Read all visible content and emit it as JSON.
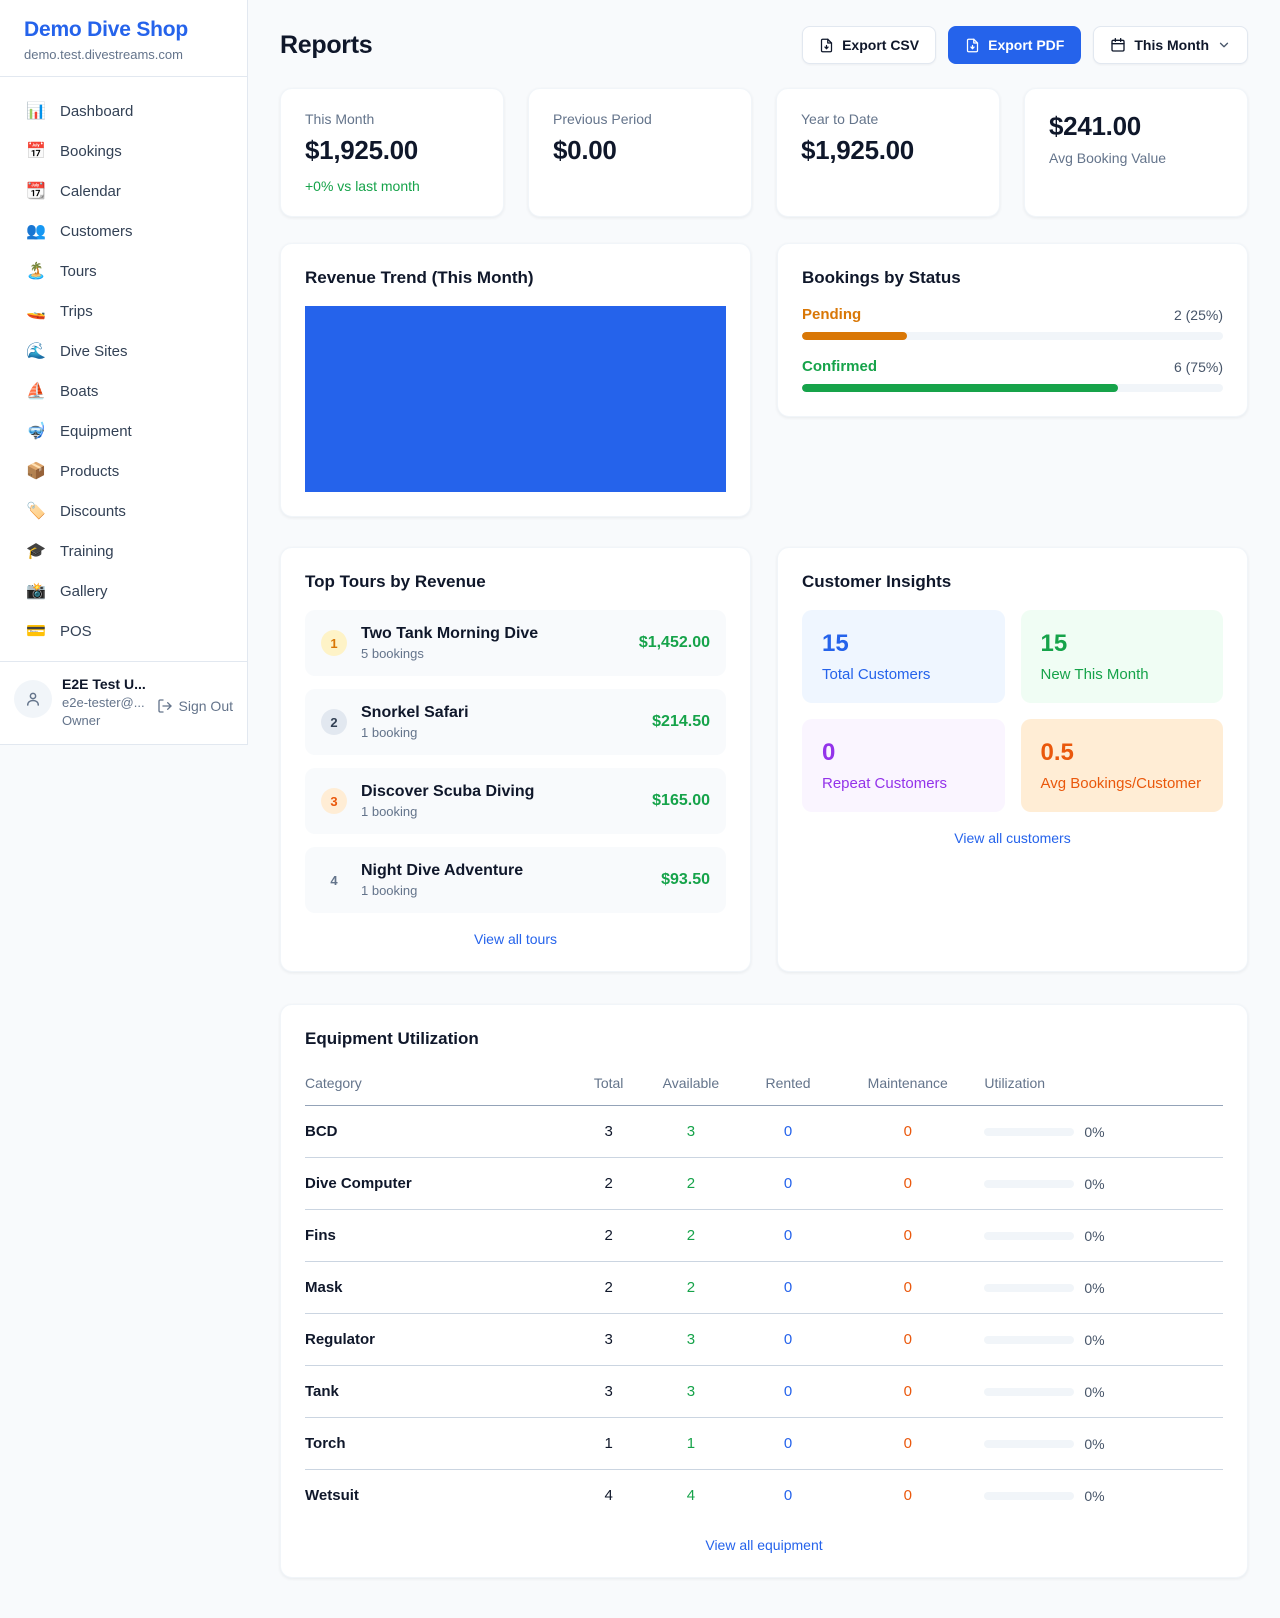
{
  "colors": {
    "accent_blue": "#2563eb",
    "green": "#16a34a",
    "pending_orange": "#d97706",
    "maintenance_orange": "#ea580c",
    "purple": "#9333ea",
    "page_background": "#f8fafc"
  },
  "sidebar": {
    "title": "Demo Dive Shop",
    "domain": "demo.test.divestreams.com",
    "items": [
      {
        "icon": "📊",
        "label": "Dashboard"
      },
      {
        "icon": "📅",
        "label": "Bookings"
      },
      {
        "icon": "📆",
        "label": "Calendar"
      },
      {
        "icon": "👥",
        "label": "Customers"
      },
      {
        "icon": "🏝️",
        "label": "Tours"
      },
      {
        "icon": "🚤",
        "label": "Trips"
      },
      {
        "icon": "🌊",
        "label": "Dive Sites"
      },
      {
        "icon": "⛵",
        "label": "Boats"
      },
      {
        "icon": "🤿",
        "label": "Equipment"
      },
      {
        "icon": "📦",
        "label": "Products"
      },
      {
        "icon": "🏷️",
        "label": "Discounts"
      },
      {
        "icon": "🎓",
        "label": "Training"
      },
      {
        "icon": "📸",
        "label": "Gallery"
      },
      {
        "icon": "💳",
        "label": "POS"
      }
    ],
    "user": {
      "name": "E2E Test U...",
      "email": "e2e-tester@...",
      "role": "Owner",
      "sign_out": "Sign Out"
    }
  },
  "header": {
    "title": "Reports",
    "export_csv": "Export CSV",
    "export_pdf": "Export PDF",
    "period": "This Month"
  },
  "stats": [
    {
      "label": "This Month",
      "value": "$1,925.00",
      "delta": "+0% vs last month"
    },
    {
      "label": "Previous Period",
      "value": "$0.00"
    },
    {
      "label": "Year to Date",
      "value": "$1,925.00"
    },
    {
      "label": "Avg Booking Value",
      "value": "$241.00"
    }
  ],
  "revenue_trend": {
    "title": "Revenue Trend (This Month)"
  },
  "bookings_by_status": {
    "title": "Bookings by Status",
    "rows": [
      {
        "label": "Pending",
        "value": "2 (25%)",
        "pct": 25
      },
      {
        "label": "Confirmed",
        "value": "6 (75%)",
        "pct": 75
      }
    ]
  },
  "top_tours": {
    "title": "Top Tours by Revenue",
    "rows": [
      {
        "rank": "1",
        "name": "Two Tank Morning Dive",
        "bookings": "5 bookings",
        "revenue": "$1,452.00"
      },
      {
        "rank": "2",
        "name": "Snorkel Safari",
        "bookings": "1 booking",
        "revenue": "$214.50"
      },
      {
        "rank": "3",
        "name": "Discover Scuba Diving",
        "bookings": "1 booking",
        "revenue": "$165.00"
      },
      {
        "rank": "4",
        "name": "Night Dive Adventure",
        "bookings": "1 booking",
        "revenue": "$93.50"
      }
    ],
    "view_all": "View all tours"
  },
  "customer_insights": {
    "title": "Customer Insights",
    "tiles": [
      {
        "value": "15",
        "label": "Total Customers"
      },
      {
        "value": "15",
        "label": "New This Month"
      },
      {
        "value": "0",
        "label": "Repeat Customers"
      },
      {
        "value": "0.5",
        "label": "Avg Bookings/Customer"
      }
    ],
    "view_all": "View all customers"
  },
  "equipment": {
    "title": "Equipment Utilization",
    "columns": [
      "Category",
      "Total",
      "Available",
      "Rented",
      "Maintenance",
      "Utilization"
    ],
    "rows": [
      {
        "category": "BCD",
        "total": "3",
        "available": "3",
        "rented": "0",
        "maintenance": "0",
        "utilization": "0%",
        "pct": 0
      },
      {
        "category": "Dive Computer",
        "total": "2",
        "available": "2",
        "rented": "0",
        "maintenance": "0",
        "utilization": "0%",
        "pct": 0
      },
      {
        "category": "Fins",
        "total": "2",
        "available": "2",
        "rented": "0",
        "maintenance": "0",
        "utilization": "0%",
        "pct": 0
      },
      {
        "category": "Mask",
        "total": "2",
        "available": "2",
        "rented": "0",
        "maintenance": "0",
        "utilization": "0%",
        "pct": 0
      },
      {
        "category": "Regulator",
        "total": "3",
        "available": "3",
        "rented": "0",
        "maintenance": "0",
        "utilization": "0%",
        "pct": 0
      },
      {
        "category": "Tank",
        "total": "3",
        "available": "3",
        "rented": "0",
        "maintenance": "0",
        "utilization": "0%",
        "pct": 0
      },
      {
        "category": "Torch",
        "total": "1",
        "available": "1",
        "rented": "0",
        "maintenance": "0",
        "utilization": "0%",
        "pct": 0
      },
      {
        "category": "Wetsuit",
        "total": "4",
        "available": "4",
        "rented": "0",
        "maintenance": "0",
        "utilization": "0%",
        "pct": 0
      }
    ],
    "view_all": "View all equipment"
  }
}
